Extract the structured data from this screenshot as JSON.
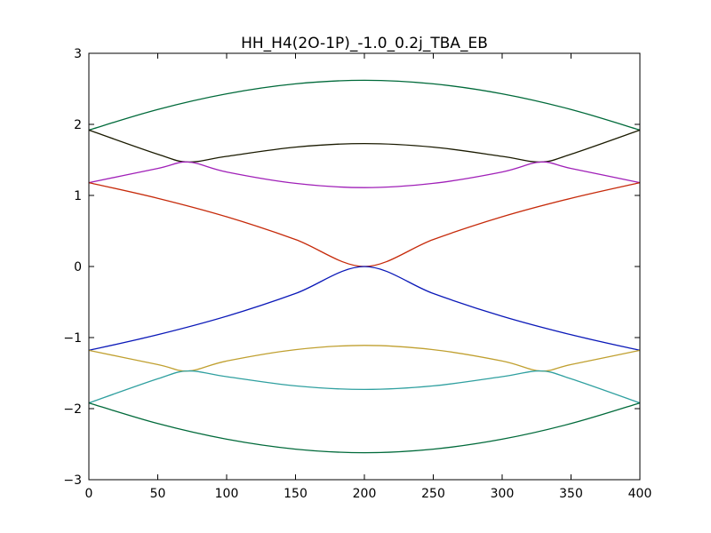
{
  "chart_data": {
    "type": "line",
    "title": "HH_H4(2O-1P)_-1.0_0.2j_TBA_EB",
    "xlabel": "",
    "ylabel": "",
    "xlim": [
      0,
      400
    ],
    "ylim": [
      -3,
      3
    ],
    "xticks": [
      0,
      50,
      100,
      150,
      200,
      250,
      300,
      350,
      400
    ],
    "yticks": [
      -3,
      -2,
      -1,
      0,
      1,
      2,
      3
    ],
    "xtick_labels": [
      "0",
      "50",
      "100",
      "150",
      "200",
      "250",
      "300",
      "350",
      "400"
    ],
    "ytick_labels": [
      "−3",
      "−2",
      "−1",
      "0",
      "1",
      "2",
      "3"
    ],
    "grid": false,
    "legend": "none",
    "series": [
      {
        "color": "#006a3a",
        "x": [
          0,
          50,
          100,
          150,
          200,
          250,
          300,
          350,
          400
        ],
        "y": [
          1.92,
          2.21,
          2.43,
          2.57,
          2.62,
          2.57,
          2.43,
          2.21,
          1.92
        ]
      },
      {
        "color": "#1a1a00",
        "x": [
          0,
          50,
          72,
          100,
          150,
          200,
          250,
          300,
          328,
          350,
          400
        ],
        "y": [
          1.92,
          1.58,
          1.47,
          1.55,
          1.68,
          1.73,
          1.68,
          1.55,
          1.47,
          1.58,
          1.92
        ]
      },
      {
        "color": "#a020b8",
        "x": [
          0,
          50,
          72,
          100,
          150,
          200,
          250,
          300,
          328,
          350,
          400
        ],
        "y": [
          1.18,
          1.38,
          1.47,
          1.33,
          1.17,
          1.11,
          1.17,
          1.33,
          1.47,
          1.38,
          1.18
        ]
      },
      {
        "color": "#c62a0a",
        "x": [
          0,
          50,
          100,
          150,
          200,
          250,
          300,
          350,
          400
        ],
        "y": [
          1.18,
          0.96,
          0.7,
          0.38,
          0.0,
          0.38,
          0.7,
          0.96,
          1.18
        ]
      },
      {
        "color": "#0a18b8",
        "x": [
          0,
          50,
          100,
          150,
          200,
          250,
          300,
          350,
          400
        ],
        "y": [
          -1.18,
          -0.96,
          -0.7,
          -0.38,
          0.0,
          -0.38,
          -0.7,
          -0.96,
          -1.18
        ]
      },
      {
        "color": "#c0a030",
        "x": [
          0,
          50,
          72,
          100,
          150,
          200,
          250,
          300,
          328,
          350,
          400
        ],
        "y": [
          -1.18,
          -1.38,
          -1.47,
          -1.33,
          -1.17,
          -1.11,
          -1.17,
          -1.33,
          -1.47,
          -1.38,
          -1.18
        ]
      },
      {
        "color": "#30a0a0",
        "x": [
          0,
          50,
          72,
          100,
          150,
          200,
          250,
          300,
          328,
          350,
          400
        ],
        "y": [
          -1.92,
          -1.58,
          -1.47,
          -1.55,
          -1.68,
          -1.73,
          -1.68,
          -1.55,
          -1.47,
          -1.58,
          -1.92
        ]
      },
      {
        "color": "#006a3a",
        "x": [
          0,
          50,
          100,
          150,
          200,
          250,
          300,
          350,
          400
        ],
        "y": [
          -1.92,
          -2.21,
          -2.43,
          -2.57,
          -2.62,
          -2.57,
          -2.43,
          -2.21,
          -1.92
        ]
      }
    ]
  }
}
